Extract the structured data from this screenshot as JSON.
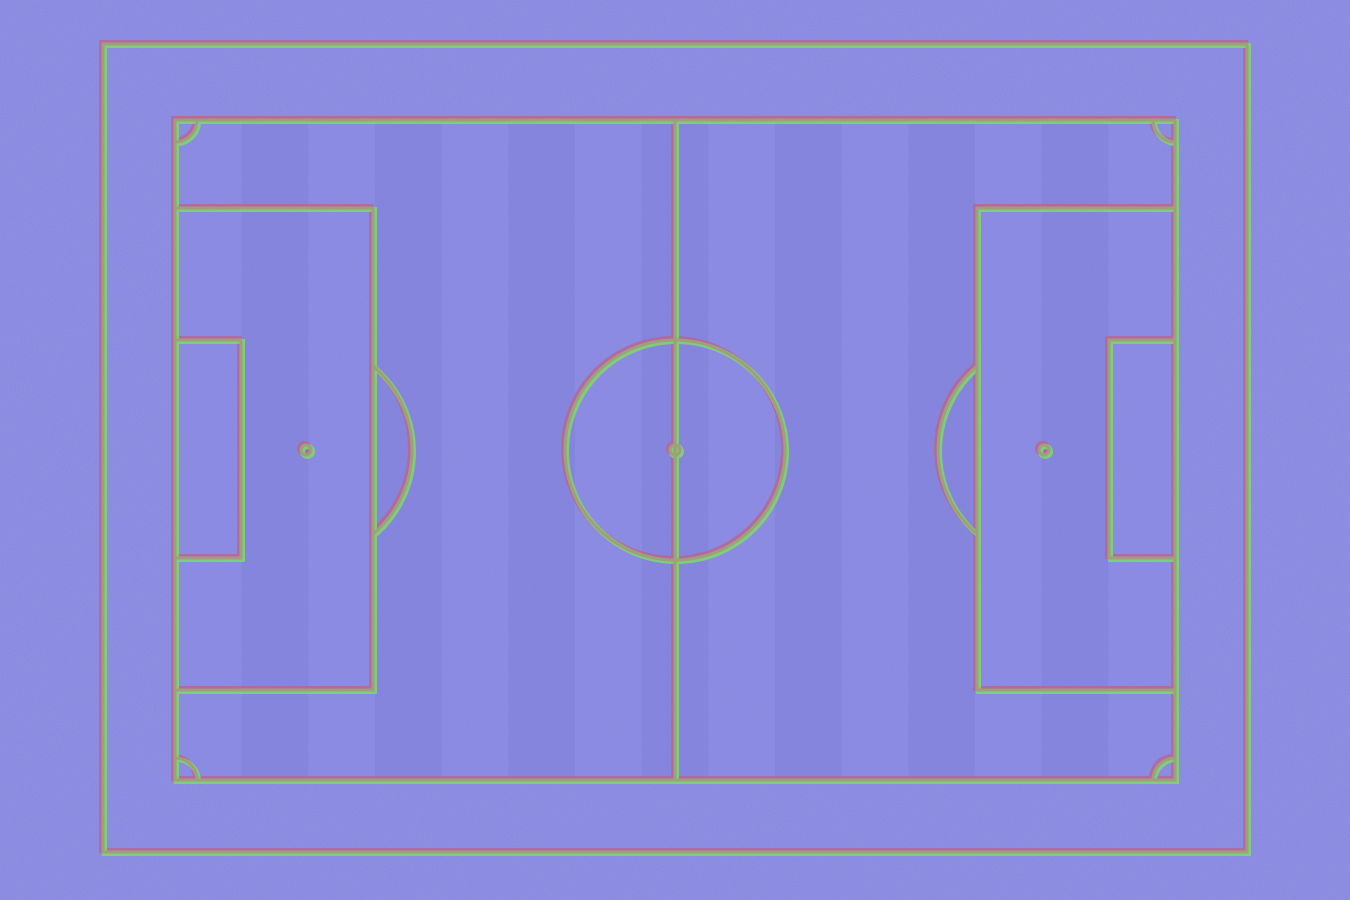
{
  "scene": {
    "type": "soccer-pitch-normal-map",
    "colors": {
      "background": "#8585e0",
      "stripe_light": "#8a8ae4",
      "stripe_dark": "#7f80da",
      "line_green": "#7fd870",
      "line_red": "#c0608a",
      "line_core": "#9fa07a"
    }
  }
}
